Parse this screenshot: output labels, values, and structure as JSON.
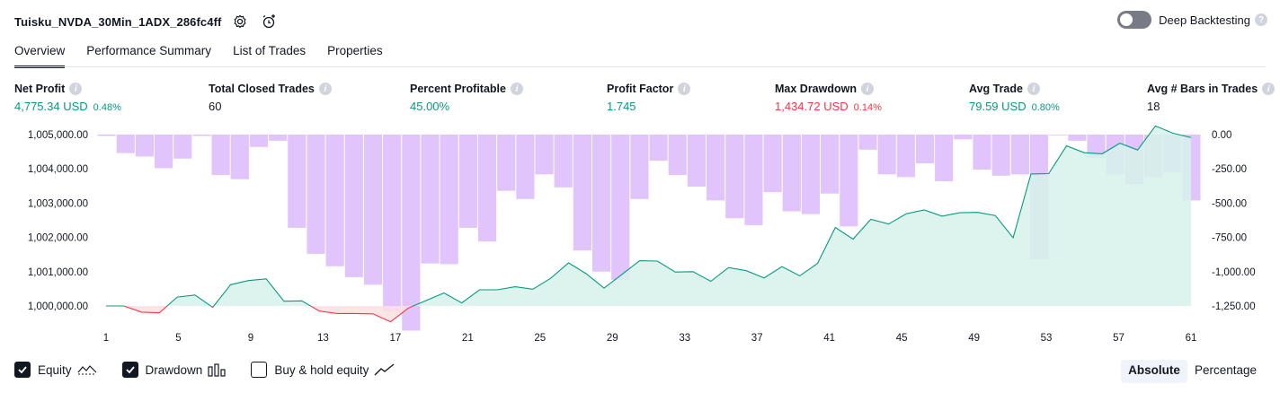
{
  "header": {
    "strategy_name": "Tuisku_NVDA_30Min_1ADX_286fc4ff",
    "icons": [
      "settings-icon",
      "add-alert-icon"
    ]
  },
  "deep_backtesting": {
    "label": "Deep Backtesting",
    "enabled": false,
    "help": "?"
  },
  "tabs": [
    {
      "label": "Overview",
      "active": true
    },
    {
      "label": "Performance Summary",
      "active": false
    },
    {
      "label": "List of Trades",
      "active": false
    },
    {
      "label": "Properties",
      "active": false
    }
  ],
  "stats": [
    {
      "label": "Net Profit",
      "value": "4,775.34 USD",
      "pct": "0.48%",
      "color": "green"
    },
    {
      "label": "Total Closed Trades",
      "value": "60",
      "pct": "",
      "color": "dark"
    },
    {
      "label": "Percent Profitable",
      "value": "45.00%",
      "pct": "",
      "color": "green"
    },
    {
      "label": "Profit Factor",
      "value": "1.745",
      "pct": "",
      "color": "green"
    },
    {
      "label": "Max Drawdown",
      "value": "1,434.72 USD",
      "pct": "0.14%",
      "color": "red"
    },
    {
      "label": "Avg Trade",
      "value": "79.59 USD",
      "pct": "0.80%",
      "color": "green"
    },
    {
      "label": "Avg # Bars in Trades",
      "value": "18",
      "pct": "",
      "color": "dark"
    }
  ],
  "chart_data": {
    "type": "line",
    "x_ticks": [
      "1",
      "5",
      "9",
      "13",
      "17",
      "21",
      "25",
      "29",
      "33",
      "37",
      "41",
      "45",
      "49",
      "53",
      "57",
      "61"
    ],
    "x_range": [
      1,
      61
    ],
    "left_axis": {
      "ticks": [
        "1,005,000.00",
        "1,004,000.00",
        "1,003,000.00",
        "1,002,000.00",
        "1,001,000.00",
        "1,000,000.00"
      ],
      "range": [
        1000000,
        1005000
      ]
    },
    "right_axis": {
      "ticks": [
        "0.00",
        "-250.00",
        "-500.00",
        "-750.00",
        "-1,000.00",
        "-1,250.00"
      ],
      "range": [
        -1250,
        0
      ]
    },
    "series": [
      {
        "name": "Equity",
        "axis": "left",
        "color": "#089981",
        "below_start_color": "#f23645",
        "values": [
          1000000,
          1000000,
          999820,
          999800,
          1000260,
          1000320,
          999960,
          1000620,
          1000740,
          1000790,
          1000140,
          1000150,
          999850,
          999780,
          999780,
          999770,
          999540,
          999940,
          1000160,
          1000380,
          1000090,
          1000470,
          1000470,
          1000560,
          1000490,
          1000810,
          1001260,
          1000940,
          1000520,
          1000920,
          1001320,
          1001310,
          1000990,
          1001000,
          1000720,
          1001120,
          1001030,
          1000820,
          1001150,
          1000880,
          1001240,
          1002290,
          1001950,
          1002530,
          1002390,
          1002690,
          1002800,
          1002620,
          1002720,
          1002730,
          1002640,
          1001990,
          1003850,
          1003860,
          1004670,
          1004470,
          1004440,
          1004750,
          1004550,
          1005250,
          1005040,
          1004910
        ]
      },
      {
        "name": "Drawdown",
        "axis": "right",
        "color": "#e1c4fb",
        "values": [
          -10,
          -135,
          -160,
          -245,
          -175,
          -10,
          -295,
          -325,
          -90,
          -45,
          -680,
          -870,
          -960,
          -1040,
          -1095,
          -1290,
          -1430,
          -940,
          -945,
          -680,
          -780,
          -410,
          -470,
          -290,
          -385,
          -845,
          -1000,
          -1060,
          -470,
          -190,
          -295,
          -380,
          -480,
          -610,
          -660,
          -420,
          -560,
          -580,
          -430,
          -670,
          -110,
          -290,
          -310,
          -210,
          -340,
          -35,
          -255,
          -300,
          -290,
          -910,
          0,
          -45,
          -170,
          -290,
          -360,
          -310,
          -275,
          -480
        ]
      }
    ],
    "legend": [
      {
        "label": "Equity",
        "checked": true,
        "icon": "equity-icon"
      },
      {
        "label": "Drawdown",
        "checked": true,
        "icon": "drawdown-bars-icon"
      },
      {
        "label": "Buy & hold equity",
        "checked": false,
        "icon": "buy-hold-line-icon"
      }
    ]
  },
  "mode": {
    "absolute": "Absolute",
    "percentage": "Percentage",
    "selected": "Absolute"
  },
  "colors": {
    "green": "#089981",
    "red": "#f23645",
    "bars": "#e1c4fb",
    "fill": "#d6f2ea"
  }
}
